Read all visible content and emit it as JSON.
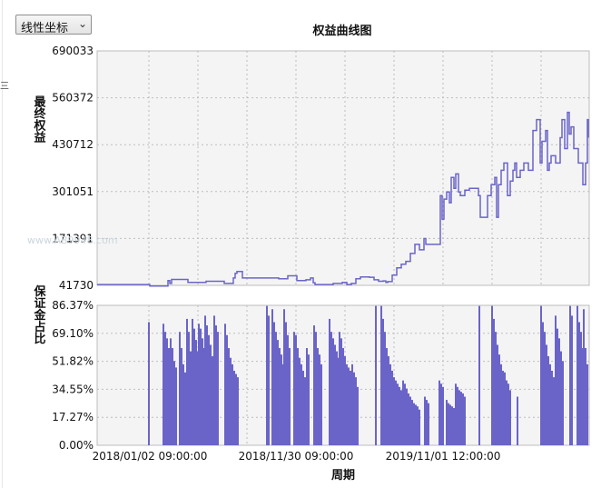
{
  "selector": {
    "value": "线性坐标",
    "icon": "chevron-down-icon"
  },
  "chart_data": [
    {
      "type": "line",
      "title": "权益曲线图",
      "ylabel": "最终权益",
      "ylim": [
        41730,
        690033
      ],
      "yticks": [
        "690033",
        "560372",
        "430712",
        "301051",
        "171391",
        "41730"
      ],
      "color": "#6a64c8",
      "grid": true,
      "x_steps": [
        0,
        56,
        58,
        76,
        78,
        80,
        82,
        100,
        120,
        140,
        150,
        152,
        154,
        156,
        160,
        180,
        200,
        210,
        220,
        230,
        235,
        238,
        240,
        250,
        260,
        270,
        275,
        280,
        285,
        290,
        300,
        305,
        310,
        315,
        318,
        320,
        325,
        330,
        335,
        340,
        345,
        350,
        355,
        360,
        362,
        365,
        370,
        375,
        378,
        380,
        382,
        385,
        388,
        390,
        393,
        395,
        398,
        400,
        403,
        405,
        410,
        420,
        422,
        424,
        426,
        430,
        434,
        438,
        440,
        442,
        445,
        448,
        452,
        455,
        458,
        460,
        462,
        466,
        470,
        472,
        475,
        480,
        484,
        488,
        490,
        494,
        496,
        498,
        500,
        505,
        510,
        512,
        515,
        518,
        520,
        522,
        525,
        530,
        535,
        538,
        540,
        541
      ],
      "values": [
        44000,
        44000,
        40000,
        40000,
        55000,
        47000,
        58000,
        50000,
        53000,
        47000,
        62000,
        75000,
        80000,
        80000,
        62000,
        62000,
        60000,
        68000,
        55000,
        57000,
        62000,
        49000,
        44000,
        44000,
        47000,
        50000,
        44000,
        47000,
        60000,
        65000,
        64000,
        57000,
        53000,
        54000,
        50000,
        52000,
        70000,
        90000,
        100000,
        108000,
        130000,
        155000,
        140000,
        171000,
        155000,
        155000,
        155000,
        155000,
        290000,
        225000,
        280000,
        300000,
        270000,
        340000,
        310000,
        350000,
        300000,
        290000,
        290000,
        305000,
        310000,
        290000,
        230000,
        230000,
        230000,
        290000,
        320000,
        340000,
        230000,
        320000,
        360000,
        380000,
        290000,
        330000,
        360000,
        380000,
        340000,
        360000,
        380000,
        380000,
        360000,
        470000,
        500000,
        380000,
        440000,
        470000,
        360000,
        380000,
        400000,
        380000,
        450000,
        500000,
        420000,
        520000,
        460000,
        480000,
        420000,
        380000,
        320000,
        380000,
        500000,
        450000
      ]
    },
    {
      "type": "bar",
      "ylabel": "保证金占比",
      "xlabel": "周期",
      "ylim": [
        0,
        86.37
      ],
      "yticks": [
        "86.37%",
        "69.10%",
        "51.82%",
        "34.55%",
        "17.27%",
        "0.00%"
      ],
      "xticks": [
        "2018/01/02 09:00:00",
        "2018/11/30 09:00:00",
        "2019/11/01 12:00:00"
      ],
      "color": "#6a64c8",
      "grid": true,
      "bars": [
        {
          "x": 56,
          "values": [
            76
          ]
        },
        {
          "x": 72,
          "values": [
            75,
            70,
            66,
            60,
            55,
            48,
            45
          ]
        },
        {
          "x": 80,
          "values": [
            66,
            60,
            52,
            48
          ]
        },
        {
          "x": 90,
          "values": [
            70,
            60,
            50,
            45
          ]
        },
        {
          "x": 98,
          "values": [
            78,
            70,
            58,
            47
          ]
        },
        {
          "x": 104,
          "values": [
            78,
            72,
            65,
            58,
            50,
            45
          ]
        },
        {
          "x": 111,
          "values": [
            75,
            72,
            66,
            60
          ]
        },
        {
          "x": 118,
          "values": [
            80,
            74,
            68,
            62,
            55,
            50
          ]
        },
        {
          "x": 128,
          "values": [
            80,
            74,
            70
          ]
        },
        {
          "x": 140,
          "values": [
            75,
            68,
            60,
            54,
            50,
            46,
            44,
            42
          ]
        },
        {
          "x": 186,
          "values": [
            86,
            80
          ]
        },
        {
          "x": 192,
          "values": [
            84,
            76,
            70,
            65,
            60,
            56,
            50,
            46,
            44,
            40
          ]
        },
        {
          "x": 205,
          "values": [
            84,
            76,
            68,
            60
          ]
        },
        {
          "x": 216,
          "values": [
            70,
            68,
            60,
            54,
            50,
            46,
            42
          ]
        },
        {
          "x": 230,
          "values": [
            60,
            56
          ]
        },
        {
          "x": 238,
          "values": [
            74,
            70,
            60,
            56,
            50
          ]
        },
        {
          "x": 255,
          "values": [
            78,
            70,
            66,
            62,
            58,
            54,
            50,
            46,
            44
          ]
        },
        {
          "x": 266,
          "values": [
            70,
            66,
            60,
            55,
            50,
            48,
            46,
            45,
            44,
            42
          ]
        },
        {
          "x": 280,
          "values": [
            50,
            45,
            40,
            36
          ]
        },
        {
          "x": 306,
          "values": [
            86
          ]
        },
        {
          "x": 312,
          "values": [
            86,
            78,
            70,
            60,
            55,
            50,
            46,
            42,
            40,
            38,
            36,
            34,
            32,
            30,
            28
          ]
        },
        {
          "x": 336,
          "values": [
            40,
            38,
            35,
            32,
            30,
            28,
            26,
            25,
            24,
            22
          ]
        },
        {
          "x": 360,
          "values": [
            30,
            28,
            26
          ]
        },
        {
          "x": 376,
          "values": [
            40,
            38,
            36
          ]
        },
        {
          "x": 384,
          "values": [
            28,
            26,
            25,
            24,
            23
          ]
        },
        {
          "x": 394,
          "values": [
            38,
            36,
            34,
            33,
            32,
            30
          ]
        },
        {
          "x": 420,
          "values": [
            86
          ]
        },
        {
          "x": 434,
          "values": [
            86,
            78,
            70,
            62,
            56,
            50,
            46,
            42,
            40,
            38
          ]
        },
        {
          "x": 448,
          "values": [
            45,
            40,
            36,
            34
          ]
        },
        {
          "x": 462,
          "values": [
            30
          ]
        },
        {
          "x": 488,
          "values": [
            86,
            76,
            70,
            62,
            55,
            50,
            46,
            42,
            40
          ]
        },
        {
          "x": 504,
          "values": [
            80,
            72,
            66,
            58,
            52
          ]
        },
        {
          "x": 520,
          "values": [
            86,
            80
          ]
        },
        {
          "x": 528,
          "values": [
            86,
            76,
            70,
            60,
            52
          ]
        },
        {
          "x": 535,
          "values": [
            84,
            60,
            50
          ]
        }
      ]
    }
  ],
  "watermark": "www.AB9948.com"
}
